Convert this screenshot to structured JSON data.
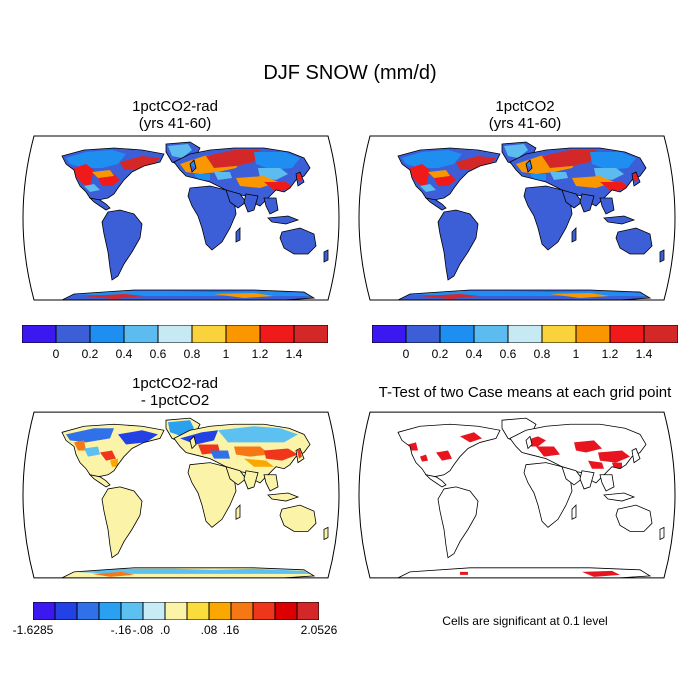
{
  "title": "DJF SNOW (mm/d)",
  "panels": {
    "top_left": {
      "title_line1": "1pctCO2-rad",
      "title_line2": "(yrs 41-60)"
    },
    "top_right": {
      "title_line1": "1pctCO2",
      "title_line2": "(yrs 41-60)"
    },
    "bottom_left": {
      "title_line1": "1pctCO2-rad",
      "title_line2": "- 1pctCO2"
    },
    "bottom_right": {
      "title_line1": "T-Test of two Case means at each grid point",
      "note": "Cells are significant at 0.1 level"
    }
  },
  "colorbar_abs": {
    "colors": [
      "#3b18f0",
      "#3c5fd8",
      "#1e8ff0",
      "#5cbcf0",
      "#c6e9f4",
      "#fad23c",
      "#fa9600",
      "#f01a1a",
      "#d42828"
    ],
    "labels": [
      "0",
      "0.2",
      "0.4",
      "0.6",
      "0.8",
      "1",
      "1.2",
      "1.4"
    ]
  },
  "colorbar_diff": {
    "colors": [
      "#3b18f0",
      "#2242e6",
      "#3070e8",
      "#2aa0f0",
      "#5cc0f0",
      "#c8ecf6",
      "#fbf4a8",
      "#fadc3c",
      "#faa800",
      "#f57814",
      "#f0361a",
      "#dc0000",
      "#d42828"
    ],
    "labels": [
      "-1.6285",
      "-.16",
      "-.08",
      ".0",
      ".08",
      ".16",
      "2.0526"
    ]
  },
  "legend_colors": {
    "significant": "#e8141e",
    "ocean": "#ffffff",
    "land_low": "#3c5fd8",
    "diff_zero": "#fbf4a8"
  }
}
